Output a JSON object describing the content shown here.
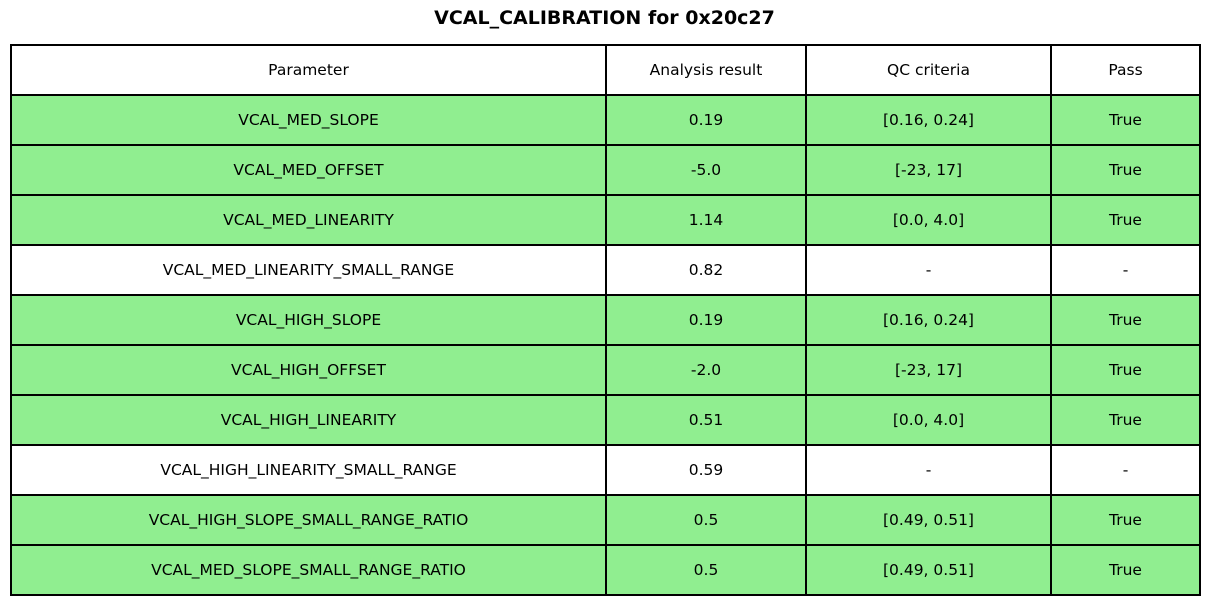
{
  "title": "VCAL_CALIBRATION for 0x20c27",
  "colors": {
    "pass_bg": "#90ee90",
    "neutral_bg": "#ffffff",
    "border": "#000000",
    "text": "#000000",
    "page_bg": "#ffffff"
  },
  "chart_data": {
    "type": "table",
    "title": "VCAL_CALIBRATION for 0x20c27",
    "columns": [
      "Parameter",
      "Analysis result",
      "QC criteria",
      "Pass"
    ],
    "rows": [
      {
        "parameter": "VCAL_MED_SLOPE",
        "result": "0.19",
        "qc": "[0.16, 0.24]",
        "pass": "True",
        "highlighted": true
      },
      {
        "parameter": "VCAL_MED_OFFSET",
        "result": "-5.0",
        "qc": "[-23, 17]",
        "pass": "True",
        "highlighted": true
      },
      {
        "parameter": "VCAL_MED_LINEARITY",
        "result": "1.14",
        "qc": "[0.0, 4.0]",
        "pass": "True",
        "highlighted": true
      },
      {
        "parameter": "VCAL_MED_LINEARITY_SMALL_RANGE",
        "result": "0.82",
        "qc": "-",
        "pass": "-",
        "highlighted": false
      },
      {
        "parameter": "VCAL_HIGH_SLOPE",
        "result": "0.19",
        "qc": "[0.16, 0.24]",
        "pass": "True",
        "highlighted": true
      },
      {
        "parameter": "VCAL_HIGH_OFFSET",
        "result": "-2.0",
        "qc": "[-23, 17]",
        "pass": "True",
        "highlighted": true
      },
      {
        "parameter": "VCAL_HIGH_LINEARITY",
        "result": "0.51",
        "qc": "[0.0, 4.0]",
        "pass": "True",
        "highlighted": true
      },
      {
        "parameter": "VCAL_HIGH_LINEARITY_SMALL_RANGE",
        "result": "0.59",
        "qc": "-",
        "pass": "-",
        "highlighted": false
      },
      {
        "parameter": "VCAL_HIGH_SLOPE_SMALL_RANGE_RATIO",
        "result": "0.5",
        "qc": "[0.49, 0.51]",
        "pass": "True",
        "highlighted": true
      },
      {
        "parameter": "VCAL_MED_SLOPE_SMALL_RANGE_RATIO",
        "result": "0.5",
        "qc": "[0.49, 0.51]",
        "pass": "True",
        "highlighted": true
      }
    ]
  }
}
